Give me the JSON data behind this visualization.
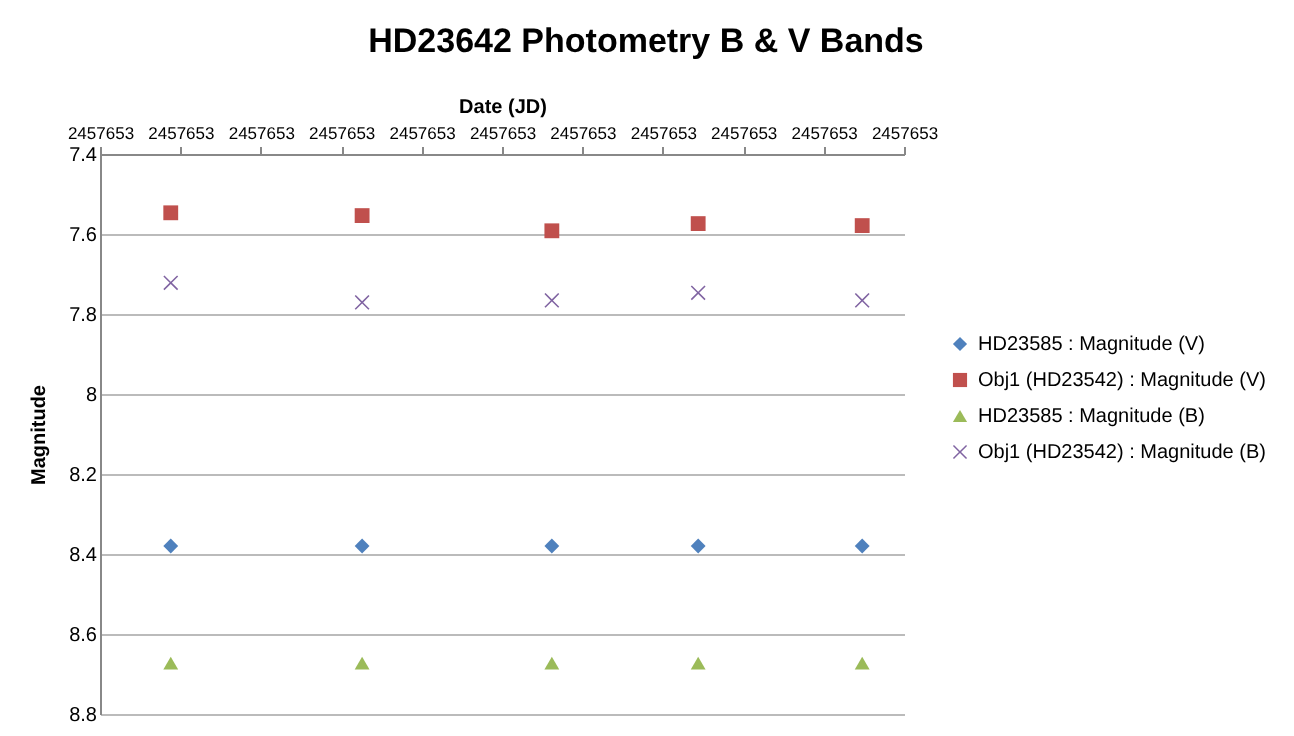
{
  "chart_data": {
    "type": "scatter",
    "title": "HD23642 Photometry B & V Bands",
    "xlabel": "Date (JD)",
    "ylabel": "Magnitude",
    "x": [
      2457653.044,
      2457653.163,
      2457653.281,
      2457653.372,
      2457653.474
    ],
    "xlim": [
      2457653.0,
      2457653.5
    ],
    "xticks": [
      {
        "value": 2457653.0,
        "label": "2457653"
      },
      {
        "value": 2457653.05,
        "label": "2457653"
      },
      {
        "value": 2457653.1,
        "label": "2457653"
      },
      {
        "value": 2457653.15,
        "label": "2457653"
      },
      {
        "value": 2457653.2,
        "label": "2457653"
      },
      {
        "value": 2457653.25,
        "label": "2457653"
      },
      {
        "value": 2457653.3,
        "label": "2457653"
      },
      {
        "value": 2457653.35,
        "label": "2457653"
      },
      {
        "value": 2457653.4,
        "label": "2457653"
      },
      {
        "value": 2457653.45,
        "label": "2457653"
      },
      {
        "value": 2457653.5,
        "label": "2457653"
      }
    ],
    "ylim": [
      8.8,
      7.4
    ],
    "yticks": [
      7.4,
      7.6,
      7.8,
      8,
      8.2,
      8.4,
      8.6,
      8.8
    ],
    "grid": "y",
    "legend": "right",
    "series": [
      {
        "name": "HD23585 : Magnitude (V)",
        "color": "#4f81bd",
        "marker": "diamond",
        "values": [
          8.38,
          8.38,
          8.38,
          8.38,
          8.38
        ]
      },
      {
        "name": "Obj1 (HD23542) : Magnitude (V)",
        "color": "#c0504d",
        "marker": "square",
        "values": [
          7.547,
          7.554,
          7.592,
          7.574,
          7.579
        ]
      },
      {
        "name": "HD23585 : Magnitude (B)",
        "color": "#9bbb59",
        "marker": "triangle",
        "values": [
          8.673,
          8.673,
          8.673,
          8.673,
          8.673
        ]
      },
      {
        "name": "Obj1 (HD23542) : Magnitude (B)",
        "color": "#8064a2",
        "marker": "cross",
        "values": [
          7.722,
          7.771,
          7.766,
          7.747,
          7.766
        ]
      }
    ]
  }
}
